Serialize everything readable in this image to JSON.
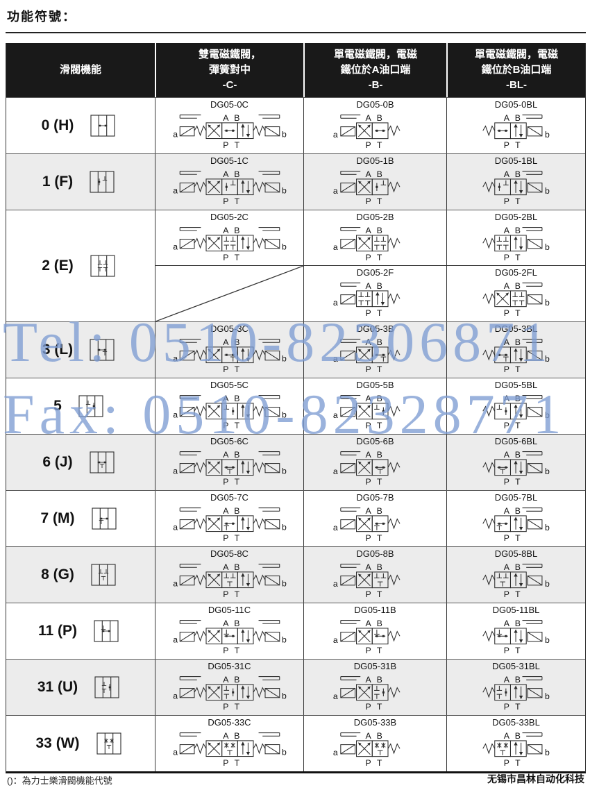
{
  "title": "功能符號：",
  "header": {
    "columns": [
      {
        "lines": [
          "滑閥機能"
        ]
      },
      {
        "lines": [
          "雙電磁鐵閥，",
          "彈簧對中",
          "-C-"
        ]
      },
      {
        "lines": [
          "單電磁鐵閥，電磁",
          "鐵位於A油口端",
          "-B-"
        ]
      },
      {
        "lines": [
          "單電磁鐵閥，電磁",
          "鐵位於B油口端",
          "-BL-"
        ]
      }
    ]
  },
  "valve_ports": {
    "top_left": "A",
    "top_right": "B",
    "bottom_left": "P",
    "bottom_right": "T",
    "solenoid_a": "a",
    "solenoid_b": "b"
  },
  "rows": [
    {
      "id": "0",
      "label": "0 (H)",
      "models": {
        "c": "DG05-0C",
        "b": "DG05-0B",
        "bl": "DG05-0BL"
      }
    },
    {
      "id": "1",
      "label": "1 (F)",
      "models": {
        "c": "DG05-1C",
        "b": "DG05-1B",
        "bl": "DG05-1BL"
      }
    },
    {
      "id": "2",
      "label": "2 (E)",
      "models": {
        "c": "DG05-2C",
        "b": "DG05-2B",
        "bl": "DG05-2BL",
        "f": "DG05-2F",
        "fl": "DG05-2FL"
      }
    },
    {
      "id": "3",
      "label": "3 (L)",
      "models": {
        "c": "DG05-3C",
        "b": "DG05-3B",
        "bl": "DG05-3BL"
      }
    },
    {
      "id": "5",
      "label": "5",
      "models": {
        "c": "DG05-5C",
        "b": "DG05-5B",
        "bl": "DG05-5BL"
      }
    },
    {
      "id": "6",
      "label": "6 (J)",
      "models": {
        "c": "DG05-6C",
        "b": "DG05-6B",
        "bl": "DG05-6BL"
      }
    },
    {
      "id": "7",
      "label": "7 (M)",
      "models": {
        "c": "DG05-7C",
        "b": "DG05-7B",
        "bl": "DG05-7BL"
      }
    },
    {
      "id": "8",
      "label": "8 (G)",
      "models": {
        "c": "DG05-8C",
        "b": "DG05-8B",
        "bl": "DG05-8BL"
      }
    },
    {
      "id": "11",
      "label": "11 (P)",
      "models": {
        "c": "DG05-11C",
        "b": "DG05-11B",
        "bl": "DG05-11BL"
      }
    },
    {
      "id": "31",
      "label": "31 (U)",
      "models": {
        "c": "DG05-31C",
        "b": "DG05-31B",
        "bl": "DG05-31BL"
      }
    },
    {
      "id": "33",
      "label": "33 (W)",
      "models": {
        "c": "DG05-33C",
        "b": "DG05-33B",
        "bl": "DG05-33BL"
      }
    }
  ],
  "watermark": {
    "line1": "Tel: 0510-82306871",
    "line2": "Fax: 0510-82328771",
    "color": "#7e9dd3"
  },
  "footer": {
    "note": "()：為力士樂滑閥機能代號",
    "company": "无锡市昌林自动化科技"
  },
  "colors": {
    "header_bg": "#191919",
    "row_alt": "#ececec",
    "border_dark": "#222222",
    "line": "#2b2b2b"
  }
}
